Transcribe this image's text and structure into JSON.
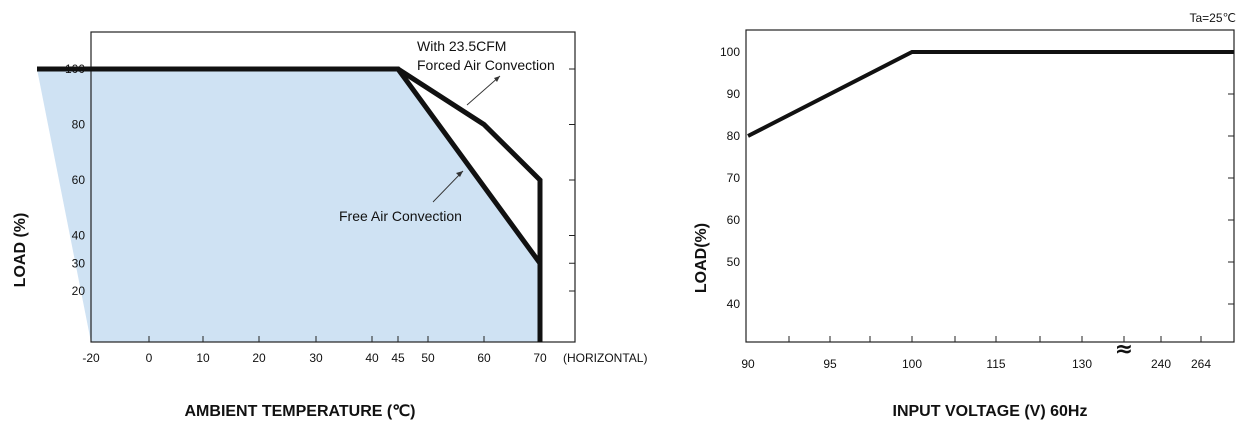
{
  "chart_data": [
    {
      "type": "line",
      "xlabel": "AMBIENT TEMPERATURE (℃)",
      "ylabel": "LOAD (%)",
      "x_ticks": [
        "-20",
        "0",
        "10",
        "20",
        "30",
        "40",
        "45",
        "50",
        "60",
        "70"
      ],
      "x_suffix": "(HORIZONTAL)",
      "y_ticks": [
        "20",
        "30",
        "40",
        "60",
        "80",
        "100"
      ],
      "xlim": [
        -20,
        70
      ],
      "ylim": [
        0,
        110
      ],
      "grid": false,
      "fill_color": "#cfe2f3",
      "series": [
        {
          "name": "With 23.5CFM Forced Air Convection",
          "x": [
            -20,
            45,
            60,
            70,
            70
          ],
          "y": [
            100,
            100,
            80,
            60,
            0
          ]
        },
        {
          "name": "Free Air Convection",
          "x": [
            -20,
            45,
            70,
            70
          ],
          "y": [
            100,
            100,
            30,
            0
          ]
        }
      ],
      "annotations": [
        {
          "lines": [
            "With 23.5CFM",
            "Forced Air Convection"
          ]
        },
        {
          "lines": [
            "Free Air Convection"
          ]
        }
      ]
    },
    {
      "type": "line",
      "xlabel": "INPUT VOLTAGE (V) 60Hz",
      "ylabel": "LOAD(%)",
      "note": "Ta=25℃",
      "x_ticks": [
        "90",
        "95",
        "100",
        "115",
        "130",
        "240",
        "264"
      ],
      "y_ticks": [
        "40",
        "50",
        "60",
        "70",
        "80",
        "90",
        "100"
      ],
      "ylim": [
        30,
        105
      ],
      "grid": false,
      "axis_break_symbol": "≈",
      "series": [
        {
          "x": [
            "90",
            "100",
            "264"
          ],
          "y": [
            80,
            100,
            100
          ]
        }
      ]
    }
  ]
}
